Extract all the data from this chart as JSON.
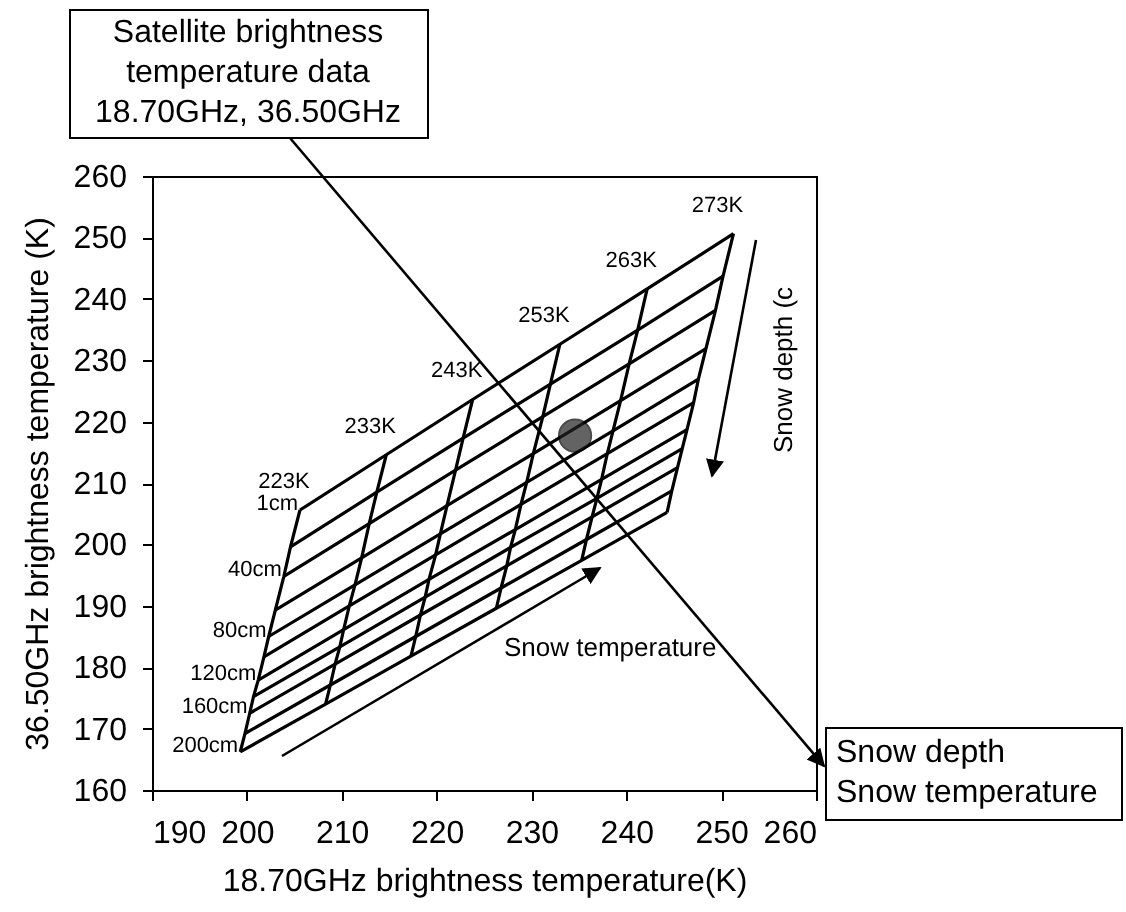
{
  "chart_data": {
    "type": "line",
    "xlabel": "18.70GHz brightness temperature(K)",
    "ylabel": "36.50GHz brightness temperature (K)",
    "xlim": [
      190,
      260
    ],
    "ylim": [
      160,
      260
    ],
    "xticks": [
      190,
      200,
      210,
      220,
      230,
      240,
      250,
      260
    ],
    "yticks": [
      160,
      170,
      180,
      190,
      200,
      210,
      220,
      230,
      240,
      250,
      260
    ],
    "grid": false,
    "legend": false,
    "annotations": [
      "Satellite brightness\ntemperature data\n18.70GHz, 36.50GHz",
      "Snow depth (c",
      "Snow temperature",
      "Snow depth\nSnow temperature"
    ],
    "series": [
      {
        "name": "223K",
        "color": "#000000",
        "x": [
          205.6,
          204.6,
          203.9,
          203.0,
          202.3,
          201.8,
          201.2,
          200.7,
          200.3,
          199.8,
          199.3
        ],
        "values": [
          205.6,
          199.6,
          194.8,
          189.3,
          185.0,
          181.7,
          177.9,
          175.2,
          172.5,
          169.2,
          166.2
        ]
      },
      {
        "name": "233K",
        "color": "#000000",
        "x": [
          214.7,
          213.7,
          212.9,
          212.1,
          211.4,
          210.8,
          210.2,
          209.8,
          209.3,
          208.8,
          208.3
        ],
        "values": [
          214.6,
          208.5,
          203.4,
          197.8,
          193.4,
          190.0,
          186.1,
          183.3,
          180.5,
          177.1,
          174.0
        ]
      },
      {
        "name": "243K",
        "color": "#000000",
        "x": [
          223.8,
          222.8,
          222.0,
          221.1,
          220.4,
          219.9,
          219.2,
          218.8,
          218.3,
          217.8,
          217.3
        ],
        "values": [
          223.6,
          217.3,
          212.1,
          206.3,
          201.7,
          198.3,
          194.3,
          191.4,
          188.5,
          185.0,
          181.8
        ]
      },
      {
        "name": "253K",
        "color": "#000000",
        "x": [
          233.0,
          232.0,
          231.2,
          230.2,
          229.5,
          228.9,
          228.3,
          227.8,
          227.4,
          226.8,
          226.3
        ],
        "values": [
          232.6,
          226.1,
          220.8,
          214.8,
          210.1,
          206.5,
          202.4,
          199.5,
          196.5,
          192.9,
          189.6
        ]
      },
      {
        "name": "263K",
        "color": "#000000",
        "x": [
          242.2,
          241.2,
          240.3,
          239.4,
          238.6,
          238.0,
          237.4,
          236.9,
          236.4,
          235.8,
          235.3
        ],
        "values": [
          241.6,
          234.9,
          229.4,
          223.4,
          218.5,
          214.8,
          210.6,
          207.5,
          204.5,
          200.8,
          197.4
        ]
      },
      {
        "name": "273K",
        "color": "#000000",
        "x": [
          251.3,
          250.2,
          249.4,
          248.4,
          247.6,
          247.1,
          246.4,
          245.9,
          245.4,
          244.8,
          244.3
        ],
        "values": [
          250.6,
          243.7,
          238.1,
          231.9,
          226.9,
          223.1,
          218.7,
          215.6,
          212.5,
          208.7,
          205.2
        ]
      },
      {
        "name": "1cm",
        "color": "#000000",
        "x": [
          205.6,
          214.7,
          223.8,
          233.0,
          242.2,
          251.3
        ],
        "values": [
          205.6,
          214.6,
          223.6,
          232.6,
          241.6,
          250.6
        ]
      },
      {
        "color": "#000000",
        "x": [
          204.6,
          213.7,
          222.8,
          232.0,
          241.2,
          250.2
        ],
        "values": [
          199.6,
          208.5,
          217.3,
          226.1,
          234.9,
          243.7
        ]
      },
      {
        "name": "40cm",
        "color": "#000000",
        "x": [
          203.9,
          212.9,
          222.0,
          231.2,
          240.3,
          249.4
        ],
        "values": [
          194.8,
          203.4,
          212.1,
          220.8,
          229.4,
          238.1
        ]
      },
      {
        "color": "#000000",
        "x": [
          203.0,
          212.1,
          221.1,
          230.2,
          239.4,
          248.4
        ],
        "values": [
          189.3,
          197.8,
          206.3,
          214.8,
          223.4,
          231.9
        ]
      },
      {
        "name": "80cm",
        "color": "#000000",
        "x": [
          202.3,
          211.4,
          220.4,
          229.5,
          238.6,
          247.6
        ],
        "values": [
          185.0,
          193.4,
          201.7,
          210.1,
          218.5,
          226.9
        ]
      },
      {
        "color": "#000000",
        "x": [
          201.8,
          210.8,
          219.9,
          228.9,
          238.0,
          247.1
        ],
        "values": [
          181.7,
          190.0,
          198.3,
          206.5,
          214.8,
          223.1
        ]
      },
      {
        "name": "120cm",
        "color": "#000000",
        "x": [
          201.2,
          210.2,
          219.2,
          228.3,
          237.4,
          246.4
        ],
        "values": [
          177.9,
          186.1,
          194.3,
          202.4,
          210.6,
          218.7
        ]
      },
      {
        "color": "#000000",
        "x": [
          200.7,
          209.8,
          218.8,
          227.8,
          236.9,
          245.9
        ],
        "values": [
          175.2,
          183.3,
          191.4,
          199.5,
          207.5,
          215.6
        ]
      },
      {
        "name": "160cm",
        "color": "#000000",
        "x": [
          200.3,
          209.3,
          218.3,
          227.4,
          236.4,
          245.4
        ],
        "values": [
          172.5,
          180.5,
          188.5,
          196.5,
          204.5,
          212.5
        ]
      },
      {
        "color": "#000000",
        "x": [
          199.8,
          208.8,
          217.8,
          226.8,
          235.8,
          244.8
        ],
        "values": [
          169.2,
          177.1,
          185.0,
          192.9,
          200.8,
          208.7
        ]
      },
      {
        "name": "200cm",
        "color": "#000000",
        "x": [
          199.3,
          208.3,
          217.3,
          226.3,
          235.3,
          244.3
        ],
        "values": [
          166.2,
          174.0,
          181.8,
          189.6,
          197.4,
          205.2
        ]
      },
      {
        "type": "scatter",
        "marker": "circle",
        "color": "#222222",
        "x": [
          234.6
        ],
        "values": [
          217.7
        ]
      }
    ]
  }
}
